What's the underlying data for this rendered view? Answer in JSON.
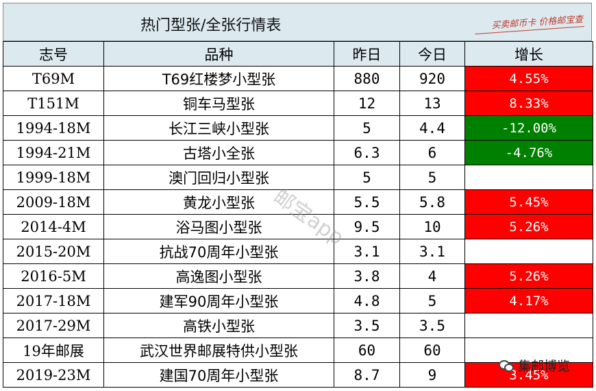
{
  "title": "热门型张/全张行情表",
  "brand": "买卖邮币卡 价格邮宝查",
  "watermark": "邮宝app",
  "credit": "集邮博览",
  "credit_icon": "wechat-icon",
  "columns": [
    "志号",
    "品种",
    "昨日",
    "今日",
    "增长"
  ],
  "colors": {
    "up": "#ff0000",
    "down": "#008000",
    "header": "#dceaf0"
  },
  "rows": [
    {
      "code": "T69M",
      "name": "T69红楼梦小型张",
      "prev": "880",
      "today": "920",
      "change": "4.55%",
      "trend": "up"
    },
    {
      "code": "T151M",
      "name": "铜车马型张",
      "prev": "12",
      "today": "13",
      "change": "8.33%",
      "trend": "up"
    },
    {
      "code": "1994-18M",
      "name": "长江三峡小型张",
      "prev": "5",
      "today": "4.4",
      "change": "-12.00%",
      "trend": "down"
    },
    {
      "code": "1994-21M",
      "name": "古塔小全张",
      "prev": "6.3",
      "today": "6",
      "change": "-4.76%",
      "trend": "down"
    },
    {
      "code": "1999-18M",
      "name": "澳门回归小型张",
      "prev": "5",
      "today": "5",
      "change": "",
      "trend": "flat"
    },
    {
      "code": "2009-18M",
      "name": "黄龙小型张",
      "prev": "5.5",
      "today": "5.8",
      "change": "5.45%",
      "trend": "up"
    },
    {
      "code": "2014-4M",
      "name": "浴马图小型张",
      "prev": "9.5",
      "today": "10",
      "change": "5.26%",
      "trend": "up"
    },
    {
      "code": "2015-20M",
      "name": "抗战70周年小型张",
      "prev": "3.1",
      "today": "3.1",
      "change": "",
      "trend": "flat"
    },
    {
      "code": "2016-5M",
      "name": "高逸图小型张",
      "prev": "3.8",
      "today": "4",
      "change": "5.26%",
      "trend": "up"
    },
    {
      "code": "2017-18M",
      "name": "建军90周年小型张",
      "prev": "4.8",
      "today": "5",
      "change": "4.17%",
      "trend": "up"
    },
    {
      "code": "2017-29M",
      "name": "高铁小型张",
      "prev": "3.5",
      "today": "3.5",
      "change": "",
      "trend": "flat"
    },
    {
      "code": "19年邮展",
      "name": "武汉世界邮展特供小型张",
      "prev": "60",
      "today": "60",
      "change": "",
      "trend": "flat"
    },
    {
      "code": "2019-23M",
      "name": "建国70周年小型张",
      "prev": "8.7",
      "today": "9",
      "change": "3.45%",
      "trend": "up"
    }
  ]
}
